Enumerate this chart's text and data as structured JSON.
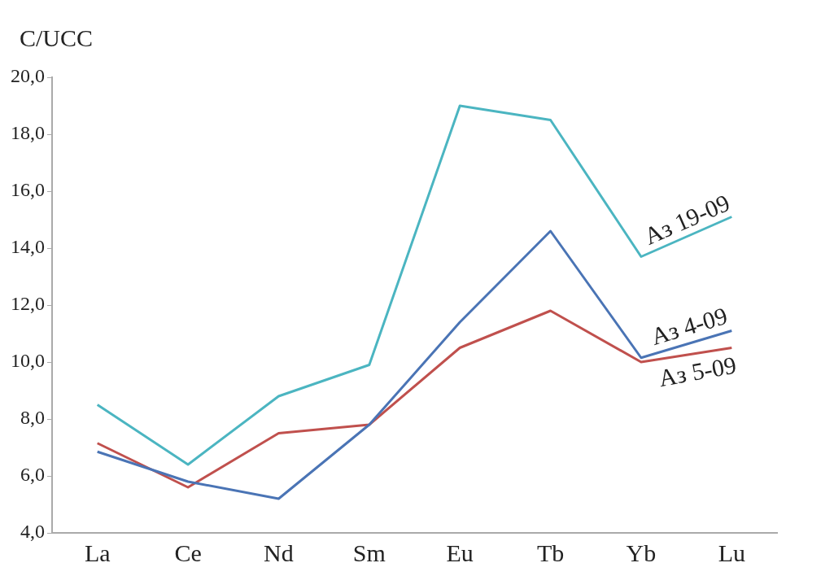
{
  "chart_data": {
    "type": "line",
    "ylabel": "C/UCC",
    "categories": [
      "La",
      "Ce",
      "Nd",
      "Sm",
      "Eu",
      "Tb",
      "Yb",
      "Lu"
    ],
    "series": [
      {
        "name": "Аз 19-09",
        "color": "#4bb5c1",
        "values": [
          8.5,
          6.4,
          8.8,
          9.9,
          19.0,
          18.5,
          13.7,
          15.1
        ]
      },
      {
        "name": "Аз 4-09",
        "color": "#4a74b5",
        "values": [
          6.85,
          5.8,
          5.2,
          7.8,
          11.4,
          14.6,
          10.15,
          11.1
        ]
      },
      {
        "name": "Аз 5-09",
        "color": "#c0504d",
        "values": [
          7.15,
          5.6,
          7.5,
          7.8,
          10.5,
          11.8,
          10.0,
          10.5
        ]
      }
    ],
    "ylim": [
      4,
      20
    ],
    "yticks": [
      {
        "value": 4,
        "label": "4,0"
      },
      {
        "value": 6,
        "label": "6,0"
      },
      {
        "value": 8,
        "label": "8,0"
      },
      {
        "value": 10,
        "label": "10,0"
      },
      {
        "value": 12,
        "label": "12,0"
      },
      {
        "value": 14,
        "label": "14,0"
      },
      {
        "value": 16,
        "label": "16,0"
      },
      {
        "value": 18,
        "label": "18,0"
      },
      {
        "value": 20,
        "label": "20,0"
      }
    ],
    "grid": false,
    "legend": false,
    "marker": "none",
    "line_style": "solid"
  }
}
